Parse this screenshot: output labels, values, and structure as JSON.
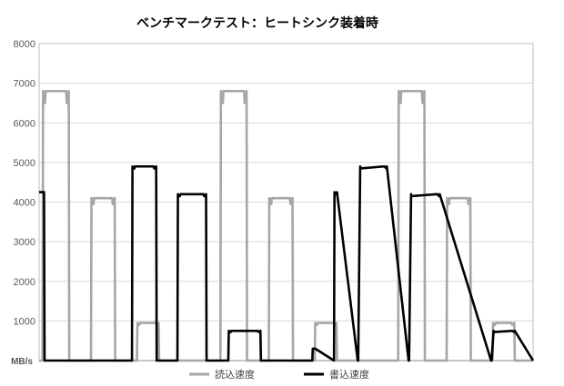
{
  "chart_data": {
    "type": "line",
    "title": "ベンチマークテスト：ヒートシンク装着時",
    "ylabel": "MB/s",
    "ylim": [
      0,
      8000
    ],
    "yticks": [
      "1000",
      "2000",
      "3000",
      "4000",
      "5000",
      "6000",
      "7000",
      "8000"
    ],
    "ytick_values": [
      1000,
      2000,
      3000,
      4000,
      5000,
      6000,
      7000,
      8000
    ],
    "grid": true,
    "legend_position": "bottom",
    "x_range": [
      0,
      100
    ],
    "series": [
      {
        "name": "読込速度",
        "color": "#a6a6a6",
        "x": [
          0,
          0.7,
          0.8,
          1.2,
          1.3,
          5.5,
          5.6,
          6.0,
          6.1,
          10.5,
          10.6,
          11.0,
          11.1,
          14.8,
          14.9,
          15.3,
          15.4,
          19.8,
          19.9,
          20.3,
          20.4,
          23.7,
          23.8,
          24.2,
          24.3,
          36.7,
          36.8,
          37.2,
          37.3,
          41.5,
          41.6,
          42.0,
          42.1,
          46.5,
          46.6,
          47.0,
          47.1,
          50.8,
          50.9,
          51.3,
          51.4,
          55.8,
          55.9,
          56.3,
          56.4,
          59.7,
          59.8,
          60.2,
          60.3,
          72.7,
          72.8,
          73.2,
          73.3,
          77.5,
          77.6,
          78.0,
          78.1,
          82.5,
          82.6,
          83.0,
          83.1,
          86.8,
          86.9,
          87.3,
          87.4,
          91.8,
          91.9,
          92.3,
          92.4,
          95.7,
          95.8,
          96.2,
          96.3,
          100
        ],
        "values": [
          0,
          0,
          6800,
          6500,
          6800,
          6800,
          6500,
          6800,
          0,
          0,
          4100,
          3950,
          4100,
          4100,
          3950,
          4100,
          0,
          0,
          950,
          900,
          950,
          950,
          900,
          950,
          0,
          0,
          6800,
          6500,
          6800,
          6800,
          6500,
          6800,
          0,
          0,
          4100,
          3950,
          4100,
          4100,
          3950,
          4100,
          0,
          0,
          950,
          900,
          950,
          950,
          900,
          950,
          0,
          0,
          6800,
          6500,
          6800,
          6800,
          6500,
          6800,
          0,
          0,
          4100,
          3950,
          4100,
          4100,
          3950,
          4100,
          0,
          0,
          950,
          900,
          950,
          950,
          900,
          950,
          0,
          0
        ]
      },
      {
        "name": "書込速度",
        "color": "#000000",
        "x": [
          0,
          0.1,
          1.0,
          1.1,
          18.8,
          18.9,
          19.3,
          19.4,
          23.2,
          23.3,
          23.7,
          23.8,
          28.0,
          28.1,
          28.5,
          28.6,
          33.3,
          33.4,
          33.8,
          33.9,
          38.3,
          38.4,
          38.8,
          38.9,
          44.3,
          44.4,
          44.8,
          44.9,
          55.3,
          55.4,
          55.8,
          55.9,
          59.7,
          59.8,
          60.2,
          60.3,
          64.5,
          64.6,
          65.0,
          65.1,
          69.8,
          69.9,
          70.3,
          70.4,
          74.8,
          74.9,
          75.3,
          75.4,
          80.5,
          80.6,
          81.0,
          81.1,
          91.5,
          91.6,
          92.0,
          92.1,
          95.7,
          95.8,
          96.2,
          96.3,
          100
        ],
        "values": [
          4250,
          4250,
          4250,
          0,
          0,
          4900,
          4850,
          4900,
          4900,
          4850,
          4900,
          0,
          0,
          4200,
          4150,
          4200,
          4200,
          4150,
          4200,
          0,
          0,
          750,
          720,
          750,
          750,
          720,
          750,
          0,
          0,
          300,
          300,
          300,
          0,
          4250,
          4200,
          4250,
          0,
          0,
          4900,
          4850,
          4900,
          4900,
          4850,
          4900,
          0,
          0,
          4200,
          4150,
          4200,
          4200,
          4150,
          4200,
          0,
          0,
          750,
          720,
          750,
          750,
          720,
          750,
          0
        ]
      }
    ]
  }
}
